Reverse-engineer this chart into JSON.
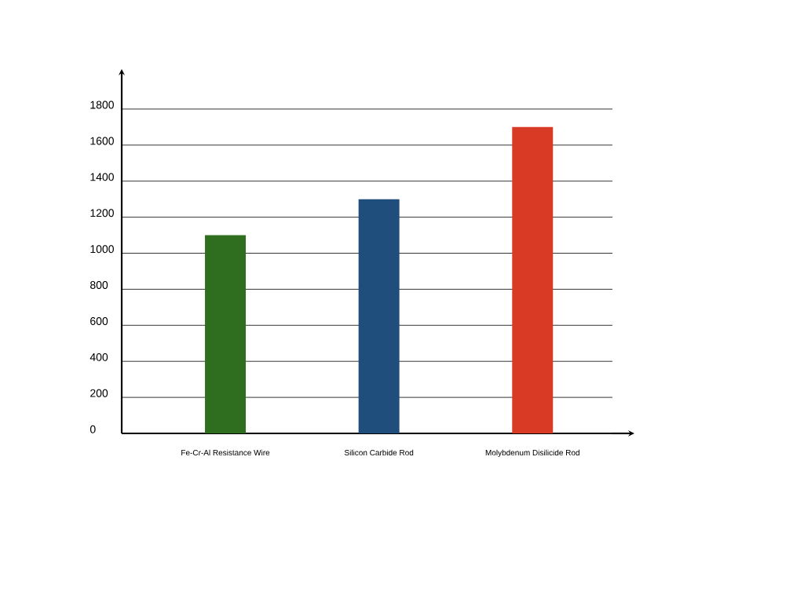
{
  "chart_data": {
    "type": "bar",
    "categories": [
      "Fe-Cr-Al Resistance Wire",
      "Silicon Carbide Rod",
      "Molybdenum Disilicide Rod"
    ],
    "values": [
      1100,
      1300,
      1700
    ],
    "colors": [
      "#2e6e1e",
      "#1f4e7c",
      "#d93a26"
    ],
    "ylim": [
      0,
      2000
    ],
    "yticks": [
      0,
      200,
      400,
      600,
      800,
      1000,
      1200,
      1400,
      1600,
      1800
    ],
    "grid": "y"
  }
}
